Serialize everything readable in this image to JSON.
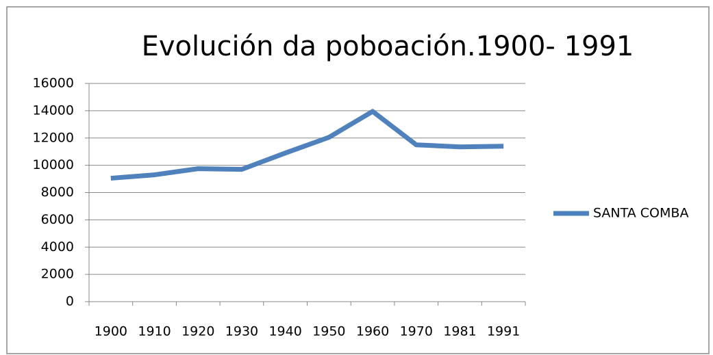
{
  "chart_data": {
    "type": "line",
    "title": "Evolución da poboación.1900- 1991",
    "categories": [
      "1900",
      "1910",
      "1920",
      "1930",
      "1940",
      "1950",
      "1960",
      "1970",
      "1981",
      "1991"
    ],
    "series": [
      {
        "name": "SANTA COMBA",
        "color": "#4f81bd",
        "values": [
          9050,
          9300,
          9750,
          9700,
          10900,
          12050,
          13950,
          11500,
          11350,
          11400
        ]
      }
    ],
    "ylim": [
      0,
      16000
    ],
    "yticks": [
      0,
      2000,
      4000,
      6000,
      8000,
      10000,
      12000,
      14000,
      16000
    ],
    "grid": true,
    "legend": "right"
  }
}
